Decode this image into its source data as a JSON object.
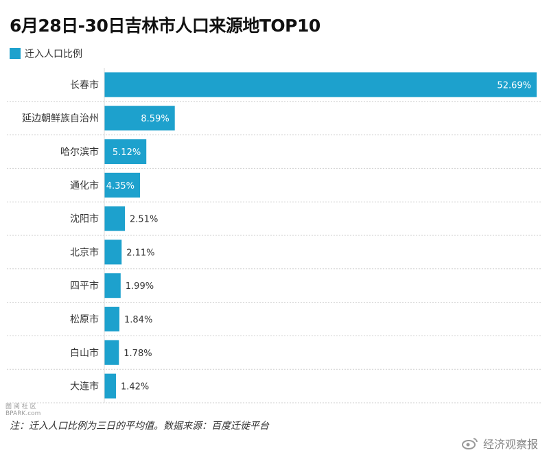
{
  "colors": {
    "bar": "#1da1cd",
    "separator": "#cfcfcf",
    "axis": "#d8d8d8",
    "text": "#333333"
  },
  "chart_data": {
    "type": "bar",
    "orientation": "horizontal",
    "title": "6月28日-30日吉林市人口来源地TOP10",
    "legend": {
      "position": "top-left",
      "entries": [
        "迁入人口比例"
      ]
    },
    "categories": [
      "长春市",
      "延边朝鲜族自治州",
      "哈尔滨市",
      "通化市",
      "沈阳市",
      "北京市",
      "四平市",
      "松原市",
      "白山市",
      "大连市"
    ],
    "series": [
      {
        "name": "迁入人口比例",
        "values": [
          52.69,
          8.59,
          5.12,
          4.35,
          2.51,
          2.11,
          1.99,
          1.84,
          1.78,
          1.42
        ],
        "labels": [
          "52.69%",
          "8.59%",
          "5.12%",
          "4.35%",
          "2.51%",
          "2.11%",
          "1.99%",
          "1.84%",
          "1.78%",
          "1.42%"
        ]
      }
    ],
    "xlim": [
      0,
      52.69
    ],
    "grid": false
  },
  "note": "注：迁入人口比例为三日的平均值。数据来源：百度迁徙平台",
  "watermark_left": [
    "图 阅 社 区",
    "BPARK.com"
  ],
  "watermark_right": "经济观察报"
}
